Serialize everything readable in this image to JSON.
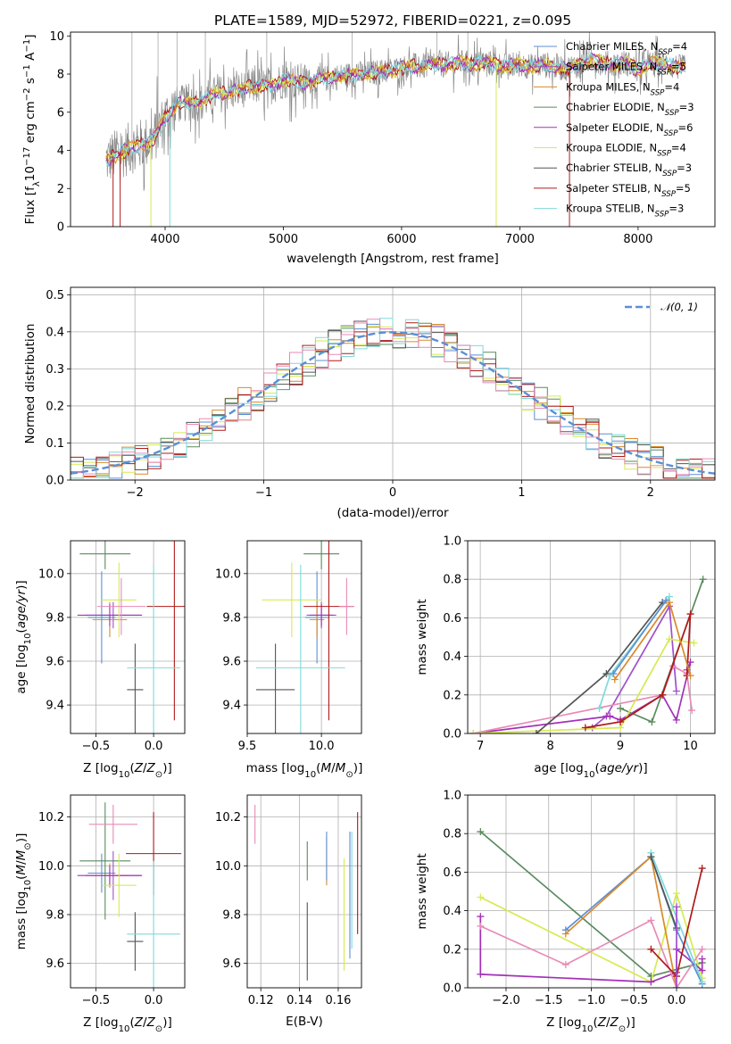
{
  "colors": {
    "Chabrier MILES": "#5b8fd6",
    "Salpeter MILES": "#a14fcc",
    "Kroupa MILES": "#d98a2b",
    "Chabrier ELODIE": "#5a8a5e",
    "Salpeter ELODIE": "#a330b8",
    "Kroupa ELODIE": "#d7ea50",
    "Chabrier STELIB": "#555555",
    "Salpeter STELIB": "#b01a1a",
    "Kroupa STELIB": "#7fdada",
    "Pink ELODIE": "#e88ab6"
  },
  "chart_data": [
    {
      "id": "spectrum",
      "type": "line",
      "title": "PLATE=1589, MJD=52972, FIBERID=0221, z=0.095",
      "xlabel": "wavelength [Angstrom, rest frame]",
      "ylabel": "Flux [f_λ10^-17 erg cm^-2 s^-1 A^-1]",
      "xlim": [
        3200,
        8650
      ],
      "ylim": [
        0,
        10.2
      ],
      "xticks": [
        4000,
        5000,
        6000,
        7000,
        8000
      ],
      "yticks": [
        0,
        2,
        4,
        6,
        8,
        10
      ],
      "legend": {
        "placement": "top-right",
        "entries": [
          {
            "model": "Chabrier MILES",
            "name": "Chabrier MILES, N",
            "sub": "SSP",
            "suffix": "=4"
          },
          {
            "model": "Salpeter MILES",
            "name": "Salpeter MILES, N",
            "sub": "SSP",
            "suffix": "=5"
          },
          {
            "model": "Kroupa MILES",
            "name": "Kroupa MILES, N",
            "sub": "SSP",
            "suffix": "=4"
          },
          {
            "model": "Chabrier ELODIE",
            "name": "Chabrier ELODIE, N",
            "sub": "SSP",
            "suffix": "=3"
          },
          {
            "model": "Salpeter ELODIE",
            "name": "Salpeter ELODIE, N",
            "sub": "SSP",
            "suffix": "=6"
          },
          {
            "model": "Kroupa ELODIE",
            "name": "Kroupa ELODIE, N",
            "sub": "SSP",
            "suffix": "=4"
          },
          {
            "model": "Chabrier STELIB",
            "name": "Chabrier STELIB, N",
            "sub": "SSP",
            "suffix": "=3"
          },
          {
            "model": "Salpeter STELIB",
            "name": "Salpeter STELIB, N",
            "sub": "SSP",
            "suffix": "=5"
          },
          {
            "model": "Kroupa STELIB",
            "name": "Kroupa STELIB, N",
            "sub": "SSP",
            "suffix": "=3"
          }
        ]
      },
      "continuum": {
        "x": [
          3500,
          3600,
          3700,
          3800,
          3900,
          4000,
          4100,
          4200,
          4300,
          4400,
          4500,
          4600,
          4700,
          4800,
          4900,
          5000,
          5100,
          5200,
          5300,
          5400,
          5500,
          5600,
          5700,
          5800,
          5900,
          6000,
          6100,
          6200,
          6300,
          6400,
          6500,
          6600,
          6700,
          6800,
          6900,
          7000,
          7100,
          7200,
          7300,
          7400,
          7500,
          7600,
          7700,
          7800,
          7900,
          8000,
          8100,
          8200,
          8300,
          8400
        ],
        "y": [
          3.5,
          3.8,
          4.1,
          4.3,
          4.6,
          5.7,
          6.4,
          6.5,
          6.5,
          6.9,
          7.0,
          7.1,
          7.3,
          7.4,
          7.4,
          7.7,
          7.6,
          7.6,
          7.7,
          7.8,
          7.9,
          8.0,
          8.0,
          8.1,
          8.2,
          8.3,
          8.4,
          8.4,
          8.5,
          8.5,
          8.6,
          8.5,
          8.6,
          8.5,
          8.4,
          8.5,
          8.4,
          8.5,
          8.4,
          8.3,
          8.5,
          8.8,
          8.6,
          8.5,
          8.6,
          8.2,
          8.5,
          8.6,
          8.4,
          8.3
        ]
      }
    },
    {
      "id": "residuals",
      "type": "histogram",
      "xlabel": "(data-model)/error",
      "ylabel": "Normed distribution",
      "xlim": [
        -2.5,
        2.5
      ],
      "ylim": [
        0,
        0.52
      ],
      "xticks": [
        -2,
        -1,
        0,
        1,
        2
      ],
      "yticks": [
        0.0,
        0.1,
        0.2,
        0.3,
        0.4,
        0.5
      ],
      "legend": {
        "placement": "top-right",
        "entries": [
          {
            "name": "𝒩(0, 1)"
          }
        ]
      },
      "bin_width": 0.1
    },
    {
      "id": "age_vs_Z",
      "type": "scatter",
      "xlabel": "Z [log10(Z/Z⊙)]",
      "ylabel": "age [log10(age/yr)]",
      "xlim": [
        -0.72,
        0.27
      ],
      "ylim": [
        9.27,
        10.15
      ],
      "xticks": [
        -0.5,
        0.0
      ],
      "yticks": [
        9.4,
        9.6,
        9.8,
        10.0
      ],
      "points": [
        {
          "model": "Chabrier MILES",
          "x": -0.45,
          "xerr": 0.12,
          "y": 9.8,
          "yerr": 0.21
        },
        {
          "model": "Salpeter MILES",
          "x": -0.35,
          "xerr": 0.24,
          "y": 9.81,
          "yerr": 0.06
        },
        {
          "model": "Kroupa MILES",
          "x": -0.38,
          "xerr": 0.15,
          "y": 9.79,
          "yerr": 0.08
        },
        {
          "model": "Chabrier ELODIE",
          "x": -0.42,
          "xerr": 0.22,
          "y": 10.09,
          "yerr": 0.07
        },
        {
          "model": "Salpeter ELODIE",
          "x": -0.38,
          "xerr": 0.28,
          "y": 9.81,
          "yerr": 0.05
        },
        {
          "model": "Kroupa ELODIE",
          "x": -0.3,
          "xerr": 0.15,
          "y": 9.88,
          "yerr": 0.17
        },
        {
          "model": "Chabrier STELIB",
          "x": -0.16,
          "xerr": 0.07,
          "y": 9.47,
          "yerr": 0.21
        },
        {
          "model": "Salpeter STELIB",
          "x": 0.18,
          "xerr": 0.24,
          "y": 9.85,
          "yerr": 0.52
        },
        {
          "model": "Kroupa STELIB",
          "x": 0.0,
          "xerr": 0.23,
          "y": 9.57,
          "yerr": 0.47
        },
        {
          "model": "Pink ELODIE",
          "x": -0.28,
          "xerr": 0.21,
          "y": 9.85,
          "yerr": 0.13
        }
      ]
    },
    {
      "id": "age_vs_mass",
      "type": "scatter",
      "xlabel": "mass [log10(M/M⊙)]",
      "ylabel": "",
      "xlim": [
        9.5,
        10.27
      ],
      "ylim": [
        9.27,
        10.15
      ],
      "xticks": [
        9.5,
        10.0
      ],
      "yticks": [
        9.4,
        9.6,
        9.8,
        10.0
      ],
      "points": [
        {
          "model": "Chabrier MILES",
          "x": 9.97,
          "xerr": 0.08,
          "y": 9.8,
          "yerr": 0.21
        },
        {
          "model": "Salpeter MILES",
          "x": 10.0,
          "xerr": 0.1,
          "y": 9.81,
          "yerr": 0.06
        },
        {
          "model": "Kroupa MILES",
          "x": 9.97,
          "xerr": 0.05,
          "y": 9.79,
          "yerr": 0.08
        },
        {
          "model": "Chabrier ELODIE",
          "x": 10.0,
          "xerr": 0.12,
          "y": 10.09,
          "yerr": 0.07
        },
        {
          "model": "Salpeter ELODIE",
          "x": 10.0,
          "xerr": 0.08,
          "y": 9.81,
          "yerr": 0.05
        },
        {
          "model": "Kroupa ELODIE",
          "x": 9.8,
          "xerr": 0.2,
          "y": 9.88,
          "yerr": 0.17
        },
        {
          "model": "Chabrier STELIB",
          "x": 9.69,
          "xerr": 0.13,
          "y": 9.47,
          "yerr": 0.21
        },
        {
          "model": "Salpeter STELIB",
          "x": 10.05,
          "xerr": 0.17,
          "y": 9.85,
          "yerr": 0.52
        },
        {
          "model": "Kroupa STELIB",
          "x": 9.86,
          "xerr": 0.3,
          "y": 9.57,
          "yerr": 0.47
        },
        {
          "model": "Pink ELODIE",
          "x": 10.17,
          "xerr": 0.05,
          "y": 9.85,
          "yerr": 0.13
        }
      ]
    },
    {
      "id": "weight_vs_age",
      "type": "line",
      "xlabel": "age [log10(age/yr)]",
      "ylabel": "mass weight",
      "xlim": [
        6.82,
        10.35
      ],
      "ylim": [
        0,
        1.0
      ],
      "xticks": [
        7,
        8,
        9,
        10
      ],
      "yticks": [
        0.0,
        0.2,
        0.4,
        0.6,
        0.8,
        1.0
      ],
      "series": [
        {
          "model": "Salpeter MILES",
          "x": [
            8.6,
            8.8,
            9.7,
            9.8
          ],
          "y": [
            0.03,
            0.09,
            0.66,
            0.22
          ]
        },
        {
          "model": "Salpeter ELODIE",
          "x": [
            6.9,
            8.85,
            9.0,
            9.6,
            9.8,
            10.0,
            9.95
          ],
          "y": [
            0.0,
            0.09,
            0.07,
            0.2,
            0.07,
            0.37,
            0.33
          ]
        },
        {
          "model": "Pink ELODIE",
          "x": [
            6.9,
            9.6,
            9.75,
            9.95,
            10.02
          ],
          "y": [
            0.0,
            0.2,
            0.35,
            0.31,
            0.12
          ]
        },
        {
          "model": "Chabrier ELODIE",
          "x": [
            9.0,
            9.45,
            10.18
          ],
          "y": [
            0.13,
            0.06,
            0.8
          ]
        },
        {
          "model": "Kroupa ELODIE",
          "x": [
            6.9,
            9.0,
            9.7,
            10.05
          ],
          "y": [
            0.0,
            0.03,
            0.49,
            0.47
          ]
        },
        {
          "model": "Chabrier STELIB",
          "x": [
            7.8,
            8.8,
            9.6
          ],
          "y": [
            0.0,
            0.31,
            0.68
          ]
        },
        {
          "model": "Salpeter STELIB",
          "x": [
            8.5,
            9.0,
            9.6,
            10.0,
            9.95
          ],
          "y": [
            0.03,
            0.06,
            0.2,
            0.62,
            0.3
          ]
        },
        {
          "model": "Kroupa STELIB",
          "x": [
            8.7,
            8.85,
            9.7
          ],
          "y": [
            0.13,
            0.3,
            0.71
          ]
        },
        {
          "model": "Chabrier MILES",
          "x": [
            8.9,
            9.65
          ],
          "y": [
            0.31,
            0.69
          ]
        },
        {
          "model": "Kroupa MILES",
          "x": [
            8.92,
            9.7,
            10.0
          ],
          "y": [
            0.28,
            0.68,
            0.3
          ]
        }
      ]
    },
    {
      "id": "mass_vs_Z",
      "type": "scatter",
      "xlabel": "Z [log10(Z/Z⊙)]",
      "ylabel": "mass [log10(M/M⊙)]",
      "xlim": [
        -0.72,
        0.27
      ],
      "ylim": [
        9.5,
        10.29
      ],
      "xticks": [
        -0.5,
        0.0
      ],
      "yticks": [
        9.6,
        9.8,
        10.0,
        10.2
      ],
      "points": [
        {
          "model": "Chabrier MILES",
          "x": -0.45,
          "xerr": 0.12,
          "y": 9.97,
          "yerr": 0.08
        },
        {
          "model": "Salpeter MILES",
          "x": -0.35,
          "xerr": 0.24,
          "y": 9.96,
          "yerr": 0.1
        },
        {
          "model": "Kroupa MILES",
          "x": -0.38,
          "xerr": 0.15,
          "y": 9.96,
          "yerr": 0.05
        },
        {
          "model": "Chabrier ELODIE",
          "x": -0.42,
          "xerr": 0.22,
          "y": 10.02,
          "yerr": 0.24
        },
        {
          "model": "Salpeter ELODIE",
          "x": -0.38,
          "xerr": 0.28,
          "y": 9.96,
          "yerr": 0.04
        },
        {
          "model": "Kroupa ELODIE",
          "x": -0.3,
          "xerr": 0.15,
          "y": 9.92,
          "yerr": 0.13
        },
        {
          "model": "Chabrier STELIB",
          "x": -0.16,
          "xerr": 0.07,
          "y": 9.69,
          "yerr": 0.12
        },
        {
          "model": "Salpeter STELIB",
          "x": 0.0,
          "xerr": 0.24,
          "y": 10.05,
          "yerr": 0.17
        },
        {
          "model": "Kroupa STELIB",
          "x": 0.0,
          "xerr": 0.23,
          "y": 9.72,
          "yerr": 0.3
        },
        {
          "model": "Pink ELODIE",
          "x": -0.35,
          "xerr": 0.21,
          "y": 10.17,
          "yerr": 0.08
        }
      ]
    },
    {
      "id": "mass_vs_ebv",
      "type": "scatter",
      "xlabel": "E(B-V)",
      "ylabel": "",
      "xlim": [
        0.113,
        0.172
      ],
      "ylim": [
        9.5,
        10.29
      ],
      "xticks": [
        0.12,
        0.14,
        0.16
      ],
      "yticks": [
        9.6,
        9.8,
        10.0,
        10.2
      ],
      "points": [
        {
          "model": "Pink ELODIE",
          "x": 0.117,
          "y": 10.17,
          "yerr": 0.08
        },
        {
          "model": "Chabrier ELODIE",
          "x": 0.144,
          "y": 10.02,
          "yerr": 0.08
        },
        {
          "model": "Chabrier STELIB",
          "x": 0.144,
          "y": 9.69,
          "yerr": 0.16
        },
        {
          "model": "Kroupa MILES",
          "x": 0.154,
          "y": 10.02,
          "yerr": 0.1
        },
        {
          "model": "Chabrier MILES",
          "x": 0.154,
          "y": 10.04,
          "yerr": 0.1
        },
        {
          "model": "Kroupa ELODIE",
          "x": 0.163,
          "y": 9.8,
          "yerr": 0.23
        },
        {
          "model": "Chabrier MILES",
          "x": 0.166,
          "y": 9.88,
          "yerr": 0.26
        },
        {
          "model": "Kroupa STELIB",
          "x": 0.167,
          "y": 9.9,
          "yerr": 0.24
        },
        {
          "model": "Salpeter STELIB",
          "x": 0.17,
          "y": 9.97,
          "yerr": 0.25
        }
      ]
    },
    {
      "id": "weight_vs_Z",
      "type": "line",
      "xlabel": "Z [log10(Z/Z⊙)]",
      "ylabel": "mass weight",
      "xlim": [
        -2.45,
        0.45
      ],
      "ylim": [
        0,
        1.0
      ],
      "xticks": [
        -2.0,
        -1.5,
        -1.0,
        -0.5,
        0.0
      ],
      "yticks": [
        0.0,
        0.2,
        0.4,
        0.6,
        0.8,
        1.0
      ],
      "series": [
        {
          "model": "Chabrier ELODIE",
          "x": [
            -2.3,
            -0.3,
            0.3
          ],
          "y": [
            0.81,
            0.06,
            0.13
          ]
        },
        {
          "model": "Kroupa ELODIE",
          "x": [
            -2.3,
            -0.3,
            0.0,
            0.3
          ],
          "y": [
            0.47,
            0.03,
            0.49,
            0.05
          ]
        },
        {
          "model": "Salpeter ELODIE",
          "x": [
            -2.3,
            -2.3,
            -0.3,
            0.0,
            0.0,
            0.3,
            0.3
          ],
          "y": [
            0.37,
            0.07,
            0.03,
            0.08,
            0.2,
            0.09,
            0.15
          ]
        },
        {
          "model": "Pink ELODIE",
          "x": [
            -2.3,
            -1.3,
            -0.3,
            0.0,
            0.3
          ],
          "y": [
            0.32,
            0.12,
            0.35,
            0.0,
            0.2
          ]
        },
        {
          "model": "Chabrier MILES",
          "x": [
            -1.3,
            -0.3,
            0.0,
            0.3
          ],
          "y": [
            0.3,
            0.68,
            0.3,
            0.02
          ]
        },
        {
          "model": "Kroupa MILES",
          "x": [
            -1.3,
            -0.3,
            0.0
          ],
          "y": [
            0.28,
            0.68,
            0.0
          ]
        },
        {
          "model": "Kroupa STELIB",
          "x": [
            -0.3,
            0.3
          ],
          "y": [
            0.7,
            0.03
          ]
        },
        {
          "model": "Chabrier STELIB",
          "x": [
            -0.3,
            0.0
          ],
          "y": [
            0.68,
            0.31
          ]
        },
        {
          "model": "Salpeter STELIB",
          "x": [
            -0.3,
            0.0,
            0.3
          ],
          "y": [
            0.2,
            0.06,
            0.62
          ]
        },
        {
          "model": "Salpeter MILES",
          "x": [
            0.0,
            0.0
          ],
          "y": [
            0.0,
            0.42
          ]
        }
      ]
    }
  ]
}
